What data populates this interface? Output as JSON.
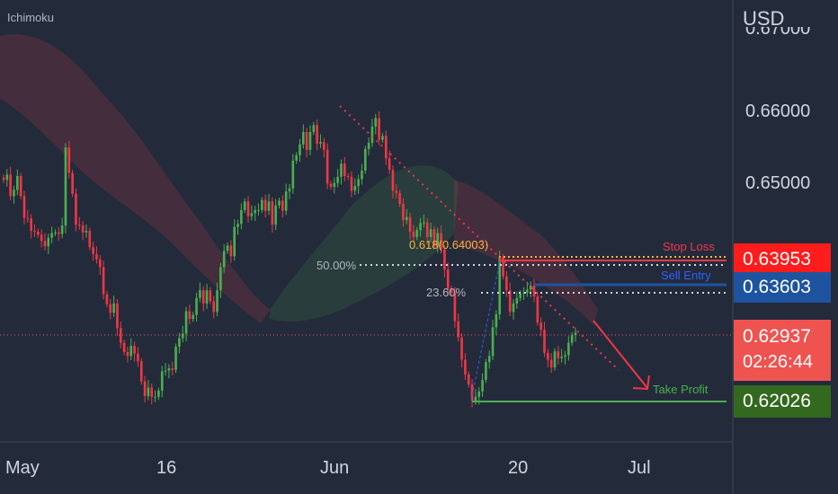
{
  "chart_data": {
    "type": "candlestick",
    "indicator": "Ichimoku",
    "currency": "USD",
    "y_ticks": [
      "0.67000",
      "0.66000",
      "0.65000"
    ],
    "x_ticks": [
      "May",
      "16",
      "Jun",
      "20",
      "Jul"
    ],
    "grid": false,
    "levels": {
      "stop_loss": {
        "label": "Stop Loss",
        "price": "0.63953",
        "color": "#f23645"
      },
      "sell_entry": {
        "label": "Sell Entry",
        "price": "0.63603",
        "color": "#1e53a0"
      },
      "take_profit": {
        "label": "Take Profit",
        "price": "0.62026",
        "color": "#33691e"
      },
      "last_price": {
        "price": "0.62937",
        "countdown": "02:26:44",
        "color": "#ef5350"
      }
    },
    "fibonacci": [
      {
        "label": "0.618(0.64003)",
        "color": "#f5b342"
      },
      {
        "label": "50.00%",
        "color": "#b2b5be"
      },
      {
        "label": "23.60%",
        "color": "#b2b5be"
      }
    ],
    "ylim": [
      0.6155,
      0.6725
    ],
    "close_series": [
      0.6492,
      0.6499,
      0.6471,
      0.6479,
      0.6497,
      0.6471,
      0.6443,
      0.6442,
      0.6426,
      0.6425,
      0.6421,
      0.6413,
      0.6406,
      0.6417,
      0.6423,
      0.6424,
      0.6422,
      0.6433,
      0.6534,
      0.6501,
      0.6474,
      0.6434,
      0.6433,
      0.6424,
      0.6426,
      0.6405,
      0.6396,
      0.6389,
      0.6379,
      0.6344,
      0.6331,
      0.632,
      0.6332,
      0.63,
      0.6281,
      0.6269,
      0.6264,
      0.6277,
      0.6267,
      0.6257,
      0.6231,
      0.6212,
      0.6223,
      0.6211,
      0.6211,
      0.6219,
      0.6244,
      0.6245,
      0.6248,
      0.6246,
      0.6276,
      0.6287,
      0.6293,
      0.6322,
      0.6312,
      0.6317,
      0.6339,
      0.6349,
      0.6332,
      0.6349,
      0.6335,
      0.6321,
      0.6349,
      0.6379,
      0.64,
      0.6407,
      0.6393,
      0.6431,
      0.6435,
      0.6453,
      0.6464,
      0.6445,
      0.6449,
      0.6453,
      0.6453,
      0.6466,
      0.6452,
      0.6464,
      0.6434,
      0.6459,
      0.6465,
      0.6452,
      0.6477,
      0.6481,
      0.6517,
      0.6524,
      0.6538,
      0.6554,
      0.6531,
      0.6554,
      0.6563,
      0.6539,
      0.6541,
      0.6531,
      0.6487,
      0.6483,
      0.6488,
      0.6496,
      0.6513,
      0.6497,
      0.6496,
      0.6478,
      0.6484,
      0.6493,
      0.6504,
      0.6532,
      0.654,
      0.6561,
      0.6572,
      0.6544,
      0.6549,
      0.652,
      0.6505,
      0.6478,
      0.6475,
      0.6461,
      0.644,
      0.6444,
      0.6425,
      0.6418,
      0.6427,
      0.6436,
      0.6437,
      0.6418,
      0.6428,
      0.6406,
      0.6423,
      0.6402,
      0.6376,
      0.6351,
      0.6346,
      0.6309,
      0.6288,
      0.6259,
      0.624,
      0.6227,
      0.6206,
      0.6211,
      0.6218,
      0.6233,
      0.6256,
      0.6264,
      0.6301,
      0.6318,
      0.6392,
      0.6367,
      0.6349,
      0.6321,
      0.6332,
      0.6339,
      0.6345,
      0.6346,
      0.635,
      0.6355,
      0.6341,
      0.6307,
      0.6298,
      0.6268,
      0.6259,
      0.6249,
      0.627,
      0.6261,
      0.6263,
      0.6265,
      0.6281,
      0.6291,
      0.6294
    ]
  }
}
